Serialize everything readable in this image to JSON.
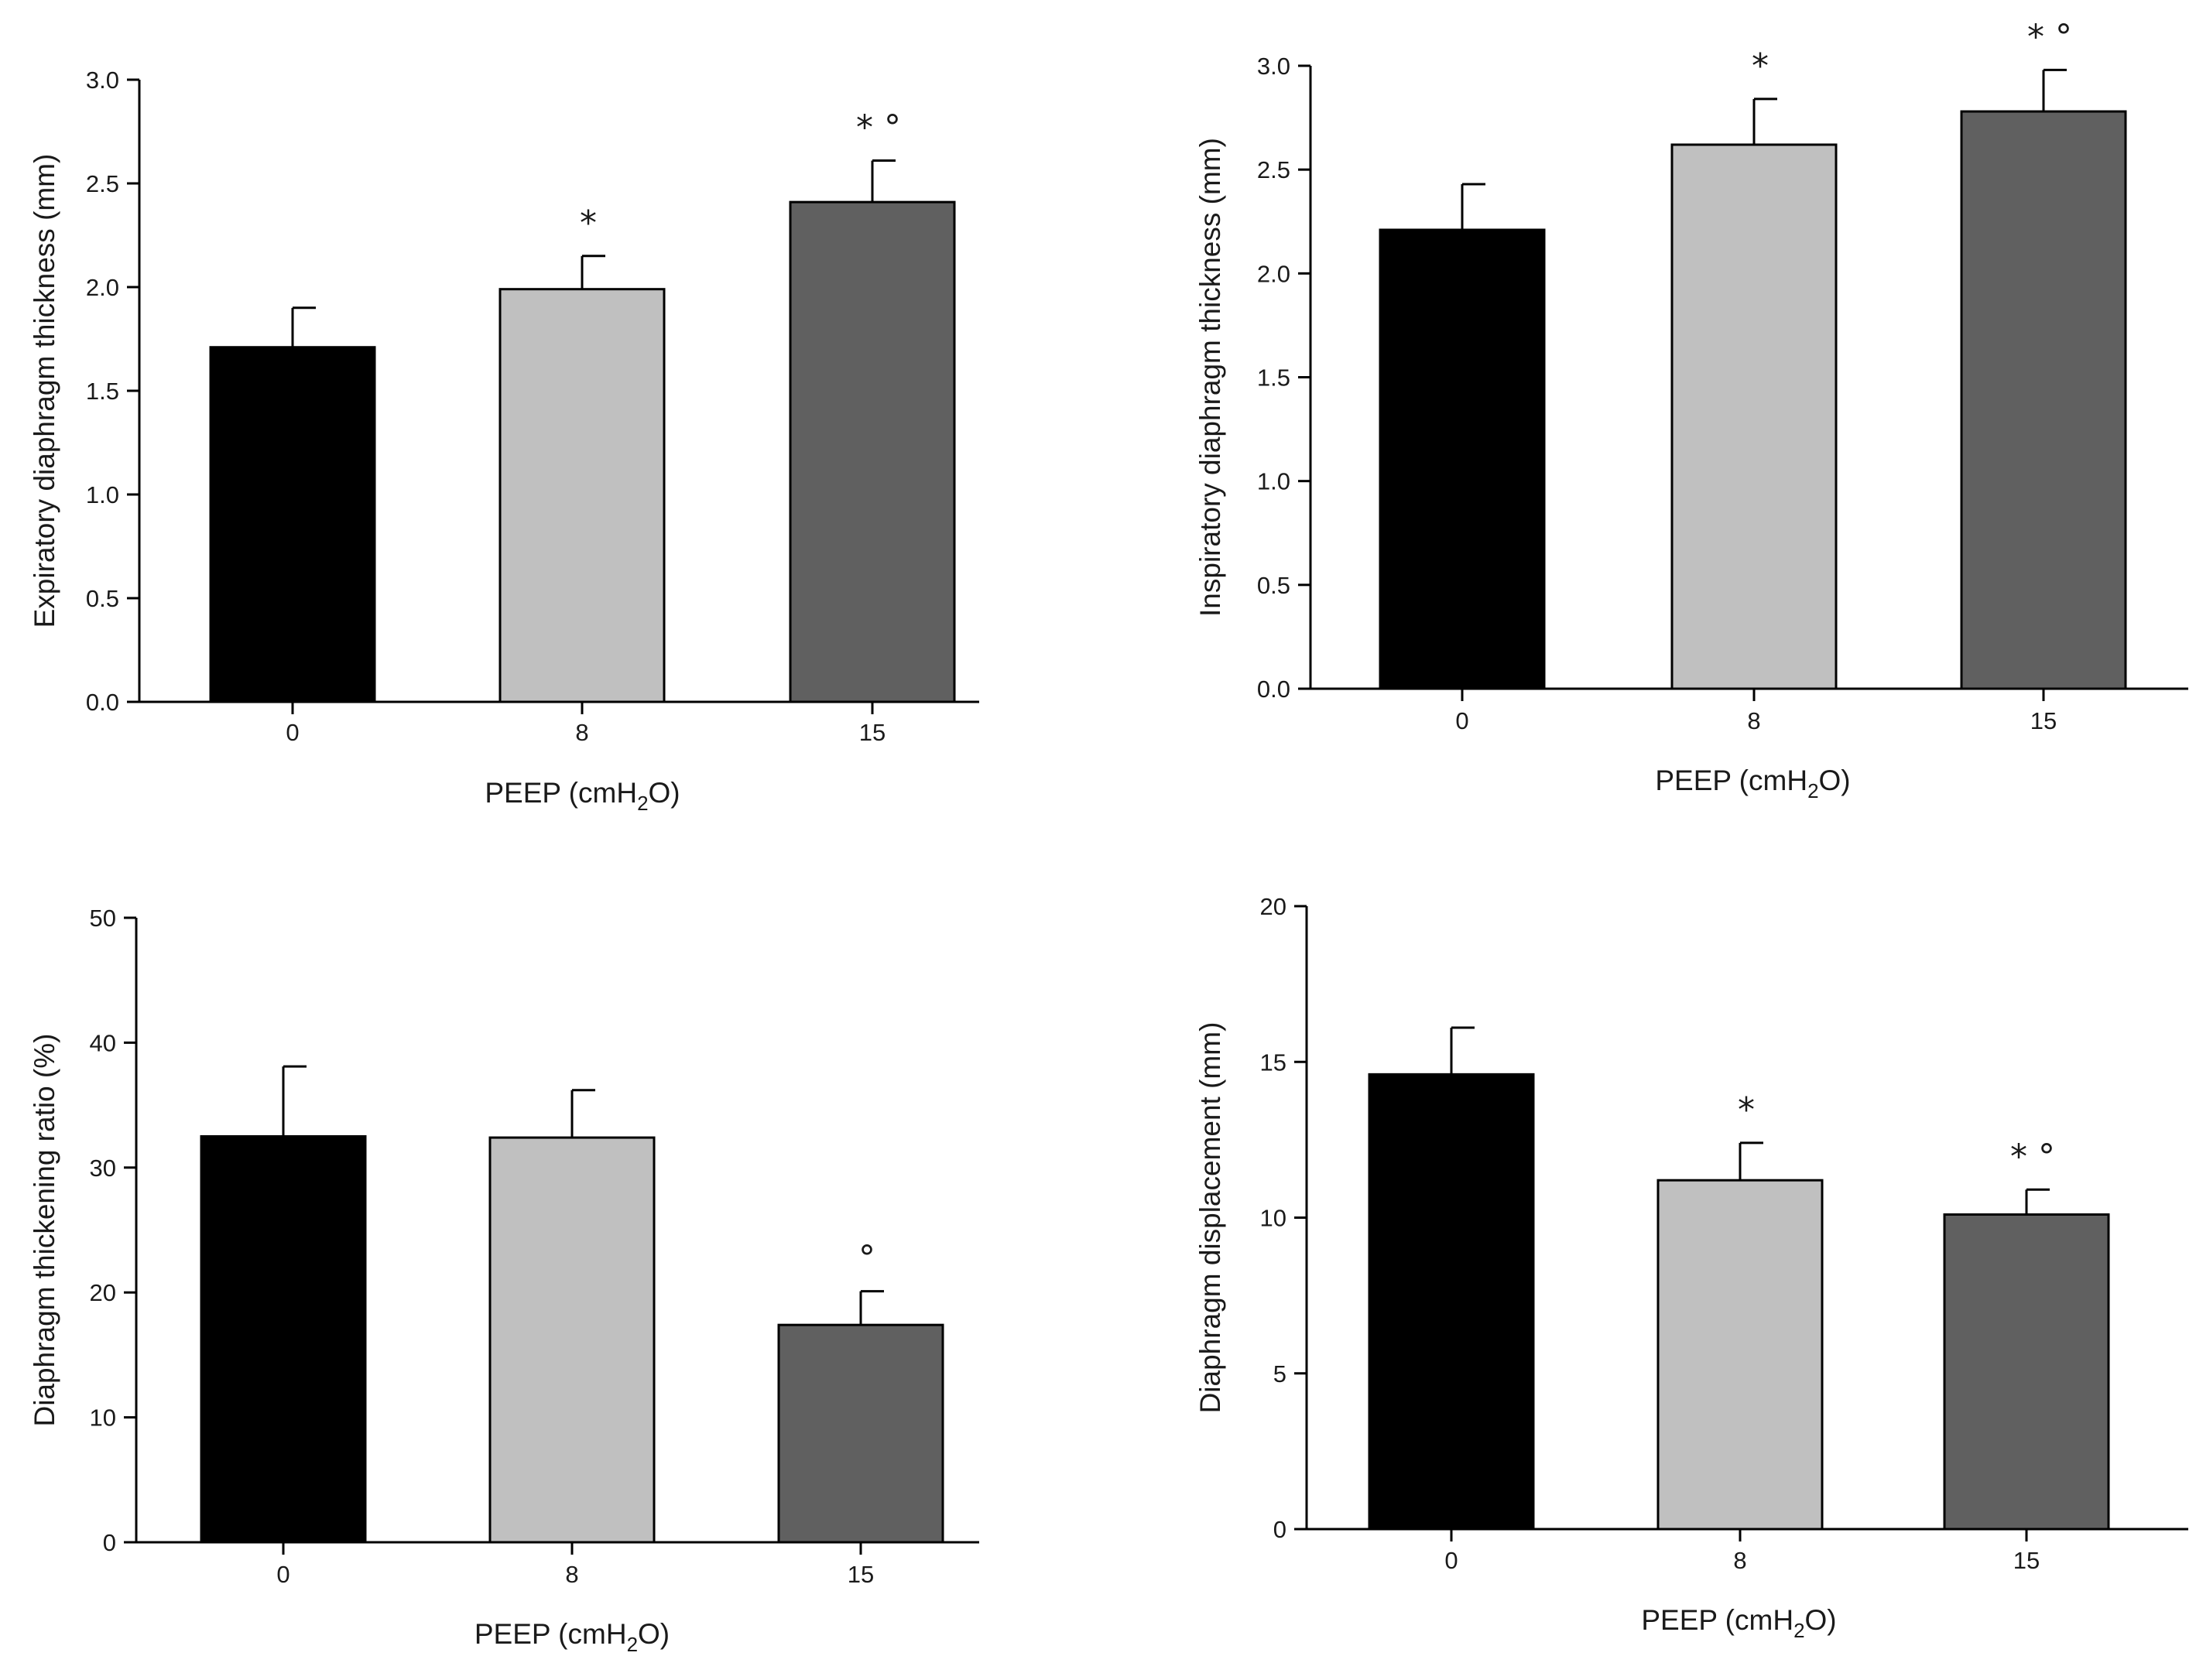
{
  "chart_data": [
    {
      "type": "bar",
      "categories": [
        "0",
        "8",
        "15"
      ],
      "values": [
        1.71,
        1.99,
        2.41
      ],
      "errors": [
        0.19,
        0.16,
        0.2
      ],
      "annotations": [
        "",
        "*",
        "* °"
      ],
      "ylim": [
        0,
        3.0
      ],
      "yticks": [
        "0.0",
        "0.5",
        "1.0",
        "1.5",
        "2.0",
        "2.5",
        "3.0"
      ],
      "ylabel": "Expiratory diaphragm thickness (mm)",
      "xlabel": "PEEP (cmH2O)",
      "xlabel_parts": {
        "pre": "PEEP (cmH",
        "sub": "2",
        "post": "O)"
      },
      "colors": [
        "#000000",
        "#c0c0c0",
        "#606060"
      ]
    },
    {
      "type": "bar",
      "categories": [
        "0",
        "8",
        "15"
      ],
      "values": [
        2.21,
        2.62,
        2.78
      ],
      "errors": [
        0.22,
        0.22,
        0.2
      ],
      "annotations": [
        "",
        "*",
        "* °"
      ],
      "ylim": [
        0,
        3.0
      ],
      "yticks": [
        "0.0",
        "0.5",
        "1.0",
        "1.5",
        "2.0",
        "2.5",
        "3.0"
      ],
      "ylabel": "Inspiratory diaphragm thickness (mm)",
      "xlabel": "PEEP (cmH2O)",
      "xlabel_parts": {
        "pre": "PEEP (cmH",
        "sub": "2",
        "post": "O)"
      },
      "colors": [
        "#000000",
        "#c0c0c0",
        "#606060"
      ]
    },
    {
      "type": "bar",
      "categories": [
        "0",
        "8",
        "15"
      ],
      "values": [
        32.5,
        32.4,
        17.4
      ],
      "errors": [
        5.6,
        3.8,
        2.7
      ],
      "annotations": [
        "",
        "",
        "°"
      ],
      "ylim": [
        0,
        50
      ],
      "yticks": [
        "0",
        "10",
        "20",
        "30",
        "40",
        "50"
      ],
      "ylabel": "Diaphragm thickening ratio (%)",
      "xlabel": "PEEP (cmH2O)",
      "xlabel_parts": {
        "pre": "PEEP (cmH",
        "sub": "2",
        "post": "O)"
      },
      "colors": [
        "#000000",
        "#c0c0c0",
        "#606060"
      ]
    },
    {
      "type": "bar",
      "categories": [
        "0",
        "8",
        "15"
      ],
      "values": [
        14.6,
        11.2,
        10.1
      ],
      "errors": [
        1.5,
        1.2,
        0.8
      ],
      "annotations": [
        "",
        "*",
        "* °"
      ],
      "ylim": [
        0,
        20
      ],
      "yticks": [
        "0",
        "5",
        "10",
        "15",
        "20"
      ],
      "ylabel": "Diaphragm displacement (mm)",
      "xlabel": "PEEP (cmH2O)",
      "xlabel_parts": {
        "pre": "PEEP (cmH",
        "sub": "2",
        "post": "O)"
      },
      "colors": [
        "#000000",
        "#c0c0c0",
        "#606060"
      ]
    }
  ]
}
